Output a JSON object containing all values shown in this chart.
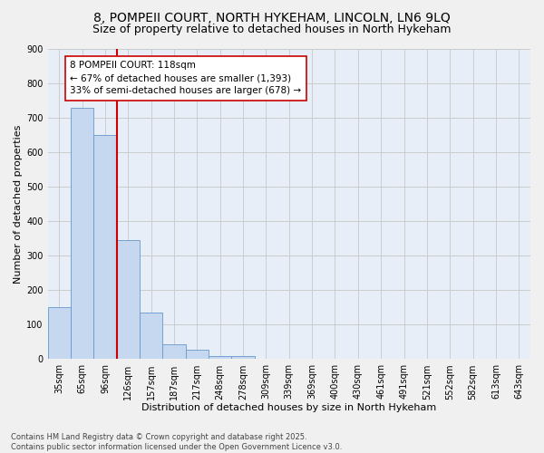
{
  "title_line1": "8, POMPEII COURT, NORTH HYKEHAM, LINCOLN, LN6 9LQ",
  "title_line2": "Size of property relative to detached houses in North Hykeham",
  "xlabel": "Distribution of detached houses by size in North Hykeham",
  "ylabel": "Number of detached properties",
  "categories": [
    "35sqm",
    "65sqm",
    "96sqm",
    "126sqm",
    "157sqm",
    "187sqm",
    "217sqm",
    "248sqm",
    "278sqm",
    "309sqm",
    "339sqm",
    "369sqm",
    "400sqm",
    "430sqm",
    "461sqm",
    "491sqm",
    "521sqm",
    "552sqm",
    "582sqm",
    "613sqm",
    "643sqm"
  ],
  "values": [
    150,
    730,
    650,
    345,
    135,
    42,
    28,
    10,
    8,
    0,
    0,
    0,
    0,
    0,
    0,
    0,
    0,
    0,
    0,
    0,
    0
  ],
  "bar_color": "#c5d8f0",
  "bar_edge_color": "#6699cc",
  "vline_x_index": 2.5,
  "vline_color": "#cc0000",
  "annotation_text": "8 POMPEII COURT: 118sqm\n← 67% of detached houses are smaller (1,393)\n33% of semi-detached houses are larger (678) →",
  "annotation_box_color": "#ffffff",
  "annotation_box_edge": "#cc0000",
  "ylim": [
    0,
    900
  ],
  "yticks": [
    0,
    100,
    200,
    300,
    400,
    500,
    600,
    700,
    800,
    900
  ],
  "grid_color": "#cccccc",
  "bg_color": "#e8eef8",
  "fig_color": "#f0f0f0",
  "footnote": "Contains HM Land Registry data © Crown copyright and database right 2025.\nContains public sector information licensed under the Open Government Licence v3.0.",
  "title_fontsize": 10,
  "subtitle_fontsize": 9,
  "axis_label_fontsize": 8,
  "tick_fontsize": 7,
  "annotation_fontsize": 7.5,
  "footnote_fontsize": 6
}
